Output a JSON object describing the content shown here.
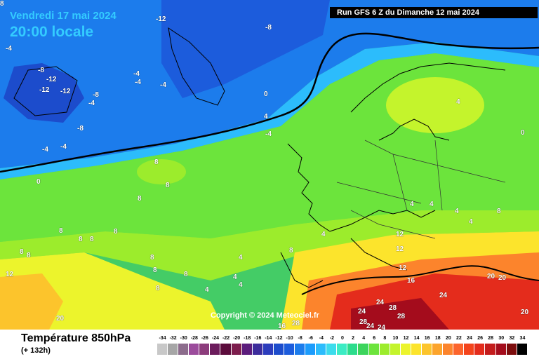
{
  "header": {
    "date": "Vendredi 17 mai 2024",
    "time": "20:00 locale",
    "run": "Run GFS 6 Z du Dimanche 12 mai 2024"
  },
  "map": {
    "copyright": "Copyright © 2024 Meteociel.fr",
    "contour_labels": [
      "-12",
      "-8",
      "-4",
      "-8",
      "-12",
      "-12",
      "-12",
      "-8",
      "-4",
      "-4",
      "-4",
      "-4",
      "-8",
      "-4",
      "-4",
      "0",
      "4",
      "-4",
      "0",
      "8",
      "8",
      "8",
      "8",
      "8",
      "8",
      "8",
      "8",
      "8",
      "8",
      "8",
      "8",
      "8",
      "4",
      "4",
      "4",
      "4",
      "4",
      "4",
      "4",
      "4",
      "4",
      "8",
      "8",
      "12",
      "12",
      "12",
      "16",
      "20",
      "20",
      "20",
      "24",
      "24",
      "24",
      "28",
      "28",
      "28",
      "24",
      "24",
      "16",
      "28",
      "20",
      "12",
      "0",
      "4",
      "8"
    ]
  },
  "footer": {
    "parameter": "Température 850hPa",
    "forecast_hour": "(+ 132h)"
  },
  "legend": {
    "labels": [
      "-34",
      "-32",
      "-30",
      "-28",
      "-26",
      "-24",
      "-22",
      "-20",
      "-18",
      "-16",
      "-14",
      "-12",
      "-10",
      "-8",
      "-6",
      "-4",
      "-2",
      "0",
      "2",
      "4",
      "6",
      "8",
      "10",
      "12",
      "14",
      "16",
      "18",
      "20",
      "22",
      "24",
      "26",
      "28",
      "30",
      "32",
      "34"
    ],
    "colors": [
      "#c8c8c8",
      "#a6a6a6",
      "#8c6c8c",
      "#9c4c9c",
      "#8c3c7c",
      "#6c1c5c",
      "#5c0c3c",
      "#7c1c4c",
      "#5c1c7c",
      "#3c2c9c",
      "#2c3cbc",
      "#1c4ccc",
      "#1c5cdc",
      "#1c7cec",
      "#1c9cfc",
      "#2cbcfc",
      "#3cdcec",
      "#3cecc4",
      "#2cdc8c",
      "#3cd45c",
      "#6ce43c",
      "#9cec2c",
      "#c4f42c",
      "#ecf42c",
      "#fce42c",
      "#fcc42c",
      "#fca42c",
      "#fc842c",
      "#fc642c",
      "#f4441c",
      "#e42c1c",
      "#c41c1c",
      "#a40c1c",
      "#7c0c0c",
      "#000000"
    ]
  }
}
